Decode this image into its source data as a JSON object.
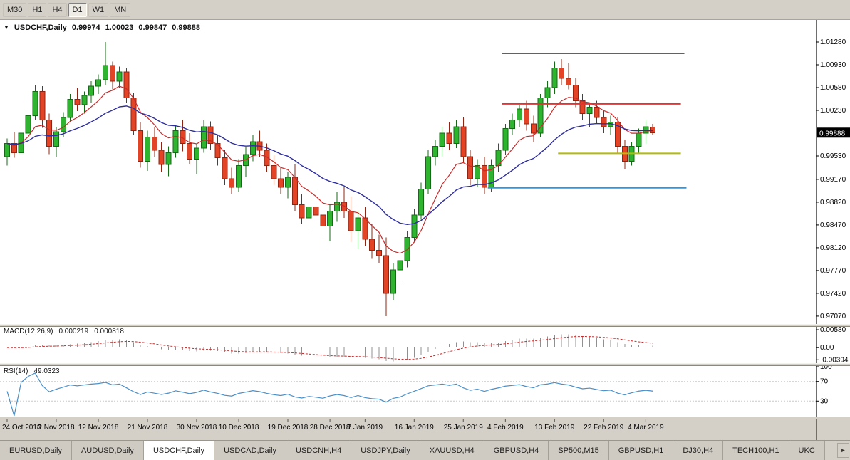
{
  "toolbar": {
    "timeframes": [
      {
        "label": "M30",
        "active": false
      },
      {
        "label": "H1",
        "active": false
      },
      {
        "label": "H4",
        "active": false
      },
      {
        "label": "D1",
        "active": true
      },
      {
        "label": "W1",
        "active": false
      },
      {
        "label": "MN",
        "active": false
      }
    ]
  },
  "header": {
    "symbol": "USDCHF,Daily",
    "open": "0.99974",
    "high": "1.00023",
    "low": "0.99847",
    "close": "0.99888"
  },
  "icons": {
    "dropdown": "▼",
    "scroll_right": "►"
  },
  "tabs": [
    {
      "label": "EURUSD,Daily",
      "active": false
    },
    {
      "label": "AUDUSD,Daily",
      "active": false
    },
    {
      "label": "USDCHF,Daily",
      "active": true
    },
    {
      "label": "USDCAD,Daily",
      "active": false
    },
    {
      "label": "USDCNH,H4",
      "active": false
    },
    {
      "label": "USDJPY,Daily",
      "active": false
    },
    {
      "label": "XAUUSD,H4",
      "active": false
    },
    {
      "label": "GBPUSD,H4",
      "active": false
    },
    {
      "label": "SP500,M15",
      "active": false
    },
    {
      "label": "GBPUSD,H1",
      "active": false
    },
    {
      "label": "DJ30,H4",
      "active": false
    },
    {
      "label": "TECH100,H1",
      "active": false
    },
    {
      "label": "UKC",
      "active": false
    }
  ],
  "theme": {
    "chrome": "#d4d0c8",
    "pane_bg": "#ffffff",
    "up": "#2eb42e",
    "up_border": "#156a15",
    "down": "#e34426",
    "down_border": "#8f2412",
    "ma_fast": "#c82a2a",
    "ma_slow": "#2e2e9e",
    "macd_hist": "#909090",
    "macd_signal": "#c82a2a",
    "rsi": "#4a8fc8",
    "axis_line": "#6e6e6e",
    "badge_bg": "#000000",
    "badge_text": "#ffffff"
  },
  "chart_data": {
    "type": "candlestick",
    "title": "USDCHF,Daily",
    "current_price": "0.99888",
    "y_axis_labels": [
      "1.01280",
      "1.00930",
      "1.00580",
      "1.00230",
      "0.99530",
      "0.99170",
      "0.98820",
      "0.98470",
      "0.98120",
      "0.97770",
      "0.97420",
      "0.97070"
    ],
    "x_labels": [
      {
        "text": "24 Oct 2018",
        "i": 0
      },
      {
        "text": "2 Nov 2018",
        "i": 7
      },
      {
        "text": "12 Nov 2018",
        "i": 13
      },
      {
        "text": "21 Nov 2018",
        "i": 20
      },
      {
        "text": "30 Nov 2018",
        "i": 27
      },
      {
        "text": "10 Dec 2018",
        "i": 33
      },
      {
        "text": "19 Dec 2018",
        "i": 40
      },
      {
        "text": "28 Dec 2018",
        "i": 46
      },
      {
        "text": "7 Jan 2019",
        "i": 51
      },
      {
        "text": "16 Jan 2019",
        "i": 58
      },
      {
        "text": "25 Jan 2019",
        "i": 65
      },
      {
        "text": "4 Feb 2019",
        "i": 71
      },
      {
        "text": "13 Feb 2019",
        "i": 78
      },
      {
        "text": "22 Feb 2019",
        "i": 85
      },
      {
        "text": "4 Mar 2019",
        "i": 91
      }
    ],
    "candles": [
      [
        0.9952,
        0.998,
        0.9938,
        0.9972
      ],
      [
        0.9972,
        0.999,
        0.995,
        0.9958
      ],
      [
        0.9958,
        0.9996,
        0.9948,
        0.9988
      ],
      [
        0.9988,
        1.0022,
        0.998,
        1.0015
      ],
      [
        1.0015,
        1.0062,
        1.0008,
        1.0052
      ],
      [
        1.0052,
        1.006,
        0.9996,
        1.0008
      ],
      [
        1.0008,
        1.0018,
        0.9956,
        0.9968
      ],
      [
        0.9968,
        0.9998,
        0.9952,
        0.999
      ],
      [
        0.999,
        1.002,
        0.9982,
        1.0012
      ],
      [
        1.0012,
        1.0048,
        1.0005,
        1.004
      ],
      [
        1.004,
        1.0058,
        1.0022,
        1.0032
      ],
      [
        1.0032,
        1.0052,
        1.0018,
        1.0046
      ],
      [
        1.0046,
        1.0068,
        1.0035,
        1.006
      ],
      [
        1.006,
        1.0078,
        1.0048,
        1.007
      ],
      [
        1.007,
        1.0128,
        1.0062,
        1.0092
      ],
      [
        1.0092,
        1.0098,
        1.0055,
        1.0068
      ],
      [
        1.0068,
        1.009,
        1.0058,
        1.0082
      ],
      [
        1.0082,
        1.0088,
        1.0035,
        1.0042
      ],
      [
        1.0042,
        1.005,
        0.9985,
        0.9992
      ],
      [
        0.9992,
        1.0005,
        0.9935,
        0.9945
      ],
      [
        0.9945,
        0.9992,
        0.993,
        0.9982
      ],
      [
        0.9982,
        0.9998,
        0.9952,
        0.9962
      ],
      [
        0.9962,
        0.9975,
        0.9928,
        0.994
      ],
      [
        0.994,
        0.9968,
        0.9922,
        0.9958
      ],
      [
        0.9958,
        1.0,
        0.995,
        0.9992
      ],
      [
        0.9992,
        1.0008,
        0.996,
        0.9972
      ],
      [
        0.9972,
        0.9988,
        0.994,
        0.9948
      ],
      [
        0.9948,
        0.9972,
        0.9925,
        0.9965
      ],
      [
        0.9965,
        1.0008,
        0.9958,
        0.9998
      ],
      [
        0.9998,
        1.0006,
        0.9962,
        0.9972
      ],
      [
        0.9972,
        0.9985,
        0.9938,
        0.995
      ],
      [
        0.995,
        0.9962,
        0.9908,
        0.9918
      ],
      [
        0.9918,
        0.9935,
        0.9895,
        0.9905
      ],
      [
        0.9905,
        0.9948,
        0.9898,
        0.9938
      ],
      [
        0.9938,
        0.9966,
        0.992,
        0.9955
      ],
      [
        0.9955,
        0.9986,
        0.9945,
        0.9975
      ],
      [
        0.9975,
        0.9992,
        0.9952,
        0.9962
      ],
      [
        0.9962,
        0.9972,
        0.9928,
        0.9938
      ],
      [
        0.9938,
        0.9955,
        0.9908,
        0.9918
      ],
      [
        0.9918,
        0.9935,
        0.9895,
        0.9905
      ],
      [
        0.9905,
        0.9928,
        0.9888,
        0.992
      ],
      [
        0.992,
        0.994,
        0.9868,
        0.9878
      ],
      [
        0.9878,
        0.9895,
        0.9848,
        0.9858
      ],
      [
        0.9858,
        0.9885,
        0.9842,
        0.9875
      ],
      [
        0.9875,
        0.9902,
        0.9855,
        0.9862
      ],
      [
        0.9862,
        0.9888,
        0.9832,
        0.9845
      ],
      [
        0.9845,
        0.9878,
        0.9822,
        0.9868
      ],
      [
        0.9868,
        0.9898,
        0.9852,
        0.9882
      ],
      [
        0.9882,
        0.9905,
        0.9858,
        0.9868
      ],
      [
        0.9868,
        0.9892,
        0.9822,
        0.9838
      ],
      [
        0.9838,
        0.987,
        0.981,
        0.9858
      ],
      [
        0.9858,
        0.9875,
        0.9815,
        0.9825
      ],
      [
        0.9825,
        0.9848,
        0.9795,
        0.9808
      ],
      [
        0.9808,
        0.9832,
        0.9788,
        0.98
      ],
      [
        0.98,
        0.9828,
        0.9707,
        0.9742
      ],
      [
        0.9742,
        0.9788,
        0.9732,
        0.9778
      ],
      [
        0.9778,
        0.9802,
        0.9762,
        0.9792
      ],
      [
        0.9792,
        0.9838,
        0.9782,
        0.9828
      ],
      [
        0.9828,
        0.9872,
        0.982,
        0.9862
      ],
      [
        0.9862,
        0.9912,
        0.9855,
        0.9902
      ],
      [
        0.9902,
        0.9962,
        0.9895,
        0.9952
      ],
      [
        0.9952,
        0.9978,
        0.9938,
        0.9968
      ],
      [
        0.9968,
        0.9998,
        0.9952,
        0.9988
      ],
      [
        0.9988,
        1.0005,
        0.9962,
        0.9972
      ],
      [
        0.9972,
        1.0008,
        0.9965,
        0.9998
      ],
      [
        0.9998,
        1.0012,
        0.9942,
        0.9952
      ],
      [
        0.9952,
        0.9962,
        0.9908,
        0.9918
      ],
      [
        0.9918,
        0.9948,
        0.9905,
        0.9938
      ],
      [
        0.9938,
        0.9952,
        0.9895,
        0.9905
      ],
      [
        0.9905,
        0.9948,
        0.9898,
        0.9938
      ],
      [
        0.9938,
        0.9972,
        0.9928,
        0.9962
      ],
      [
        0.9962,
        1.0002,
        0.9955,
        0.9995
      ],
      [
        0.9995,
        1.0018,
        0.9985,
        1.0008
      ],
      [
        1.0008,
        1.0032,
        0.9998,
        1.0025
      ],
      [
        1.0025,
        1.0038,
        0.9992,
        1.0002
      ],
      [
        1.0002,
        1.0015,
        0.9975,
        0.9988
      ],
      [
        0.9988,
        1.0048,
        0.9982,
        1.0042
      ],
      [
        1.0042,
        1.0068,
        1.0028,
        1.0058
      ],
      [
        1.0058,
        1.0098,
        1.0048,
        1.0088
      ],
      [
        1.0088,
        1.0102,
        1.0062,
        1.0072
      ],
      [
        1.0072,
        1.0095,
        1.0055,
        1.0062
      ],
      [
        1.0062,
        1.0072,
        1.0028,
        1.0038
      ],
      [
        1.0038,
        1.0048,
        1.0008,
        1.0018
      ],
      [
        1.0018,
        1.0035,
        0.9998,
        1.0028
      ],
      [
        1.0028,
        1.0038,
        1.0002,
        1.0012
      ],
      [
        1.0012,
        1.0022,
        0.9988,
        0.9998
      ],
      [
        0.9998,
        1.0015,
        0.9985,
        1.0005
      ],
      [
        1.0005,
        1.0012,
        0.9958,
        0.9968
      ],
      [
        0.9968,
        0.9978,
        0.9932,
        0.9945
      ],
      [
        0.9945,
        0.9975,
        0.9938,
        0.9968
      ],
      [
        0.9968,
        0.9995,
        0.9958,
        0.9988
      ],
      [
        0.9988,
        1.0008,
        0.9972,
        0.9998
      ],
      [
        0.99974,
        1.00023,
        0.99847,
        0.99888
      ]
    ],
    "trendlines": [
      {
        "price": 1.011,
        "from": 70.5,
        "to": 96.5,
        "color": "#a04848",
        "width": 1
      },
      {
        "price": 1.0033,
        "from": 70.5,
        "to": 96.0,
        "color": "#e43232",
        "width": 2
      },
      {
        "price": 0.9957,
        "from": 78.5,
        "to": 96.0,
        "color": "#b4bc00",
        "width": 2
      },
      {
        "price": 0.9904,
        "from": 68.5,
        "to": 96.8,
        "color": "#2e96dc",
        "width": 2
      }
    ],
    "moving_averages": [
      {
        "name": "fast",
        "color": "#c82a2a"
      },
      {
        "name": "slow",
        "color": "#2e2e9e"
      }
    ],
    "macd": {
      "label": "MACD(12,26,9)",
      "value": "0.000219",
      "signal_value": "0.000818",
      "axis_labels": [
        {
          "text": "0.00580",
          "v": 0.0058
        },
        {
          "text": "0.00",
          "v": 0
        },
        {
          "text": "-0.00394",
          "v": -0.00394
        }
      ]
    },
    "rsi": {
      "label": "RSI(14)",
      "value": "49.0323",
      "levels": [
        70,
        30
      ],
      "axis_labels": [
        {
          "text": "100",
          "v": 100
        },
        {
          "text": "70",
          "v": 70
        },
        {
          "text": "30",
          "v": 30
        }
      ]
    }
  }
}
